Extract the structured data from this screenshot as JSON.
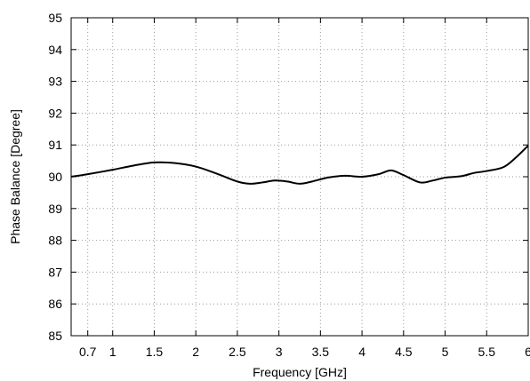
{
  "chart_data": {
    "type": "line",
    "title": "",
    "xlabel": "Frequency [GHz]",
    "ylabel": "Phase Balance [Degree]",
    "xlim": [
      0.5,
      6
    ],
    "ylim": [
      85,
      95
    ],
    "xticks": [
      0.7,
      1,
      1.5,
      2,
      2.5,
      3,
      3.5,
      4,
      4.5,
      5,
      5.5,
      6
    ],
    "xtick_labels": [
      "0.7",
      "1",
      "1.5",
      "2",
      "2.5",
      "3",
      "3.5",
      "4",
      "4.5",
      "5",
      "5.5",
      "6"
    ],
    "yticks": [
      85,
      86,
      87,
      88,
      89,
      90,
      91,
      92,
      93,
      94,
      95
    ],
    "ytick_labels": [
      "85",
      "86",
      "87",
      "88",
      "89",
      "90",
      "91",
      "92",
      "93",
      "94",
      "95"
    ],
    "grid": true,
    "grid_style": "dotted",
    "line_color": "#000000",
    "series": [
      {
        "x": [
          0.5,
          0.7,
          1.0,
          1.25,
          1.5,
          1.75,
          2.0,
          2.25,
          2.5,
          2.65,
          2.8,
          2.95,
          3.1,
          3.25,
          3.4,
          3.6,
          3.8,
          4.0,
          4.2,
          4.35,
          4.5,
          4.7,
          4.85,
          5.0,
          5.2,
          5.35,
          5.5,
          5.7,
          5.85,
          6.0
        ],
        "y": [
          90.0,
          90.08,
          90.22,
          90.35,
          90.45,
          90.43,
          90.32,
          90.1,
          89.85,
          89.78,
          89.82,
          89.88,
          89.85,
          89.78,
          89.85,
          89.98,
          90.03,
          90.0,
          90.08,
          90.2,
          90.05,
          89.82,
          89.88,
          89.97,
          90.02,
          90.12,
          90.18,
          90.3,
          90.6,
          90.98
        ]
      }
    ]
  }
}
